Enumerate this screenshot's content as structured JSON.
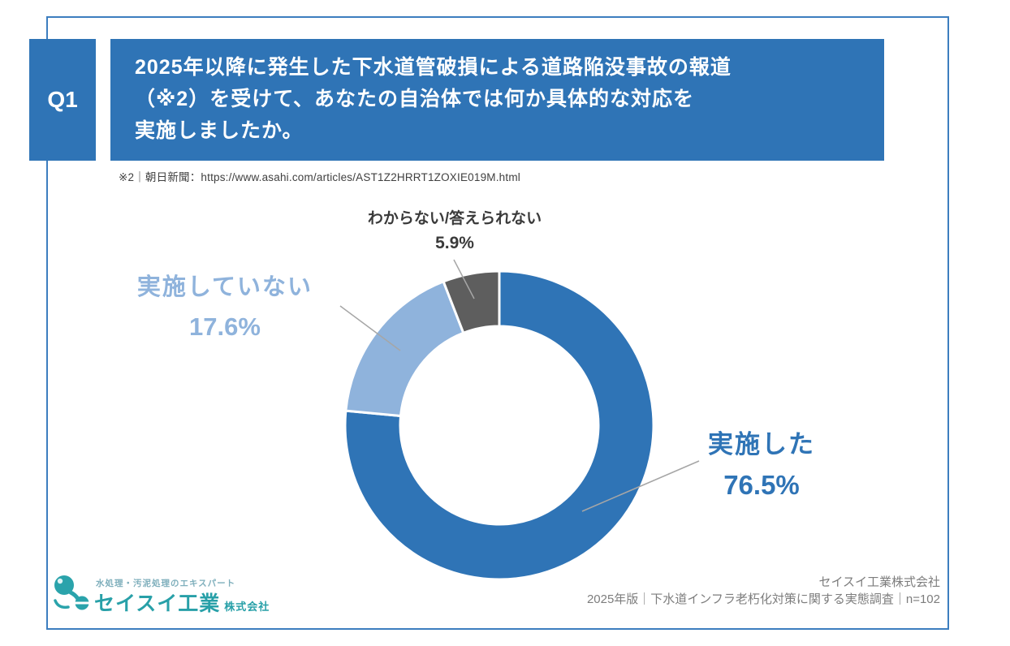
{
  "question": {
    "number": "Q1",
    "title_line1": "2025年以降に発生した下水道管破損による道路陥没事故の報道",
    "title_line2": "（※2）を受けて、あなたの自治体では何か具体的な対応を",
    "title_line3": "実施しましたか。",
    "footnote": "※2｜朝日新聞：https://www.asahi.com/articles/AST1Z2HRRT1ZOXIE019M.html"
  },
  "chart_data": {
    "type": "pie",
    "subtype": "donut",
    "categories": [
      "実施した",
      "実施していない",
      "わからない/答えられない"
    ],
    "values": [
      76.5,
      17.6,
      5.9
    ],
    "percent_labels": [
      "76.5%",
      "17.6%",
      "5.9%"
    ],
    "unit": "%",
    "colors": [
      "#2f74b6",
      "#8fb3dc",
      "#5e5e5e"
    ],
    "start_angle_deg": 0,
    "direction": "clockwise",
    "donut_hole_ratio": 0.64,
    "legend": "direct labels with leader lines"
  },
  "footer": {
    "logo_tagline": "水処理・汚泥処理のエキスパート",
    "logo_company": "セイスイ工業",
    "logo_suffix": "株式会社",
    "credit_line1": "セイスイ工業株式会社",
    "credit_line2": "2025年版｜下水道インフラ老朽化対策に関する実態調査｜n=102"
  },
  "colors": {
    "primary_blue": "#2f74b6",
    "light_blue": "#8fb3dc",
    "dark_gray": "#5e5e5e",
    "label_dark": "#3a3a3a",
    "frame_border": "#3d7ebf",
    "credit_gray": "#7d7d7d",
    "logo_teal": "#28a0a8",
    "leader_line": "#a6a6a6"
  }
}
